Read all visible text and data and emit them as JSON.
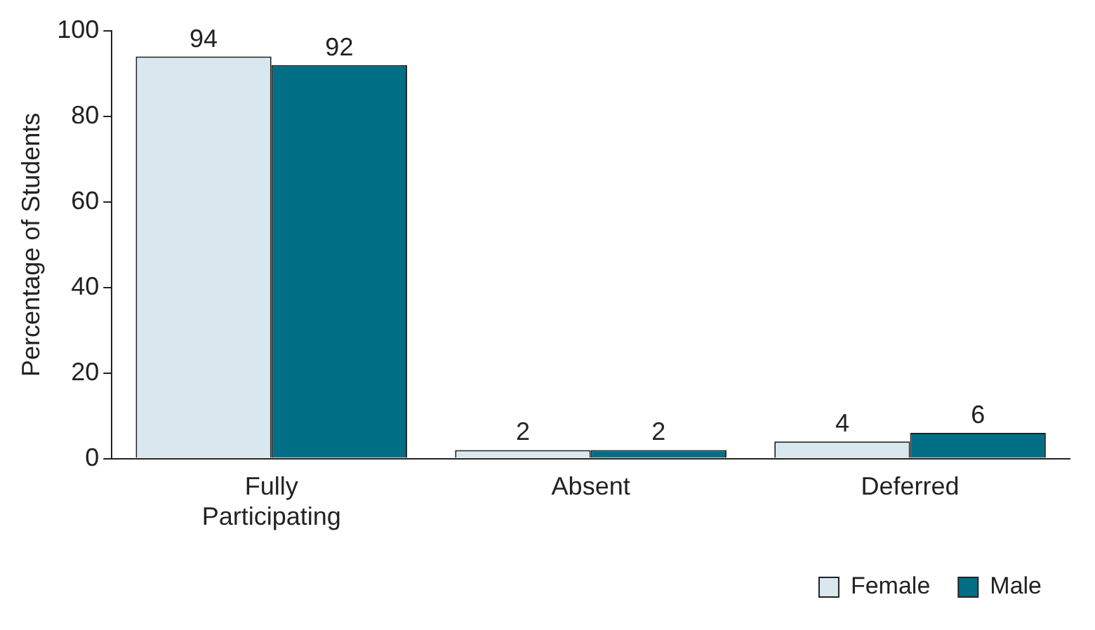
{
  "chart_data": {
    "type": "bar",
    "ylabel": "Percentage of Students",
    "categories": [
      "Fully Participating",
      "Absent",
      "Deferred"
    ],
    "series": [
      {
        "name": "Female",
        "color": "#d9e8ef",
        "values": [
          94,
          2,
          4
        ]
      },
      {
        "name": "Male",
        "color": "#006f86",
        "values": [
          92,
          2,
          6
        ]
      }
    ],
    "ylim": [
      0,
      100
    ],
    "yticks": [
      0,
      20,
      40,
      60,
      80,
      100
    ],
    "grid": false,
    "legend": "bottom right",
    "data_labels": true
  }
}
